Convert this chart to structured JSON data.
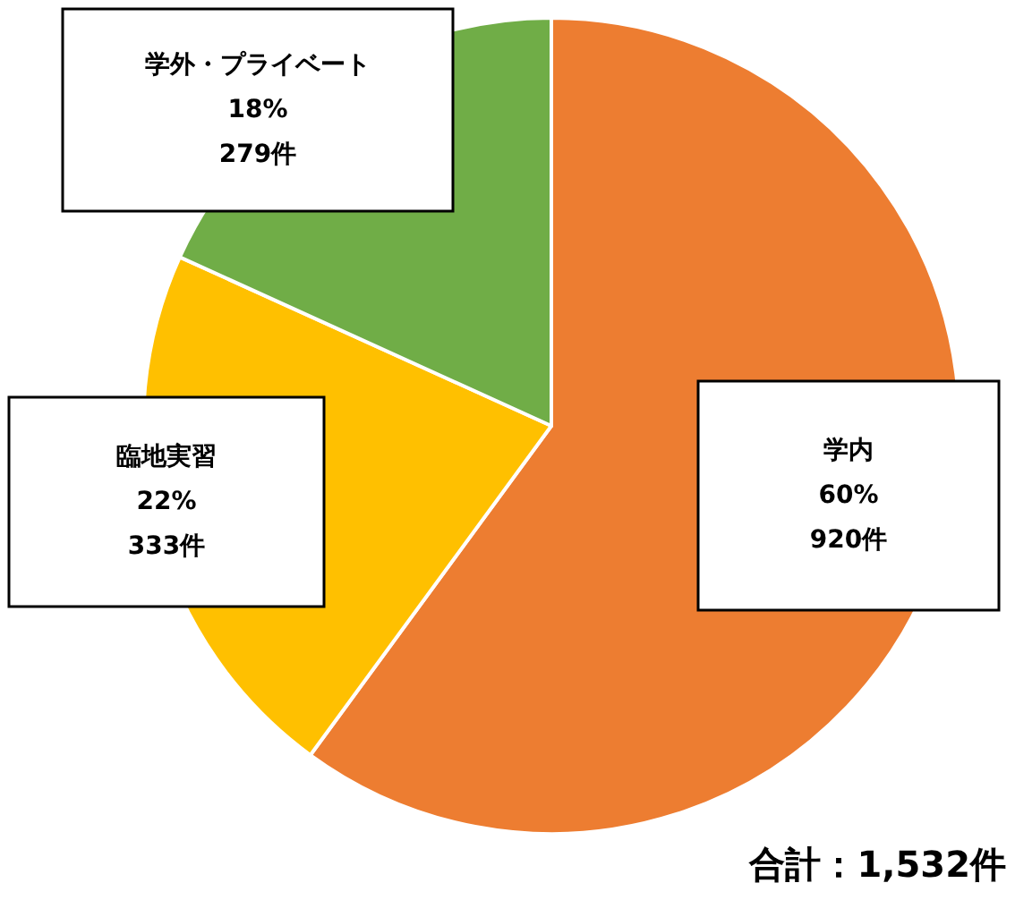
{
  "chart_data": {
    "type": "pie",
    "categories": [
      "学内",
      "臨地実習",
      "学外・プライベート"
    ],
    "values": [
      920,
      333,
      279
    ],
    "value_labels": [
      "60%\n920件",
      "22%\n333件",
      "18%\n279件"
    ],
    "colors": [
      "#ed7d31",
      "#ffc000",
      "#70ad47"
    ],
    "annotations": [
      "合計：1,532件"
    ]
  }
}
